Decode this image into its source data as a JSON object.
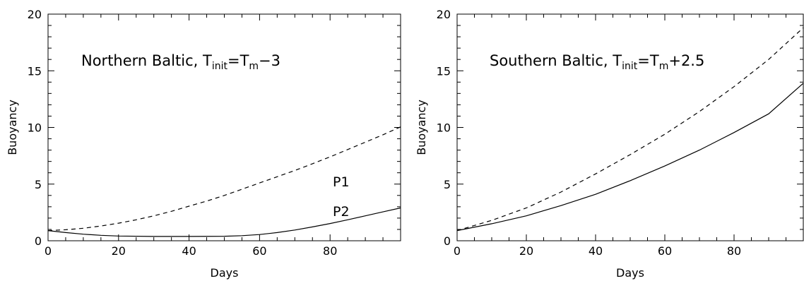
{
  "chart_data": [
    {
      "type": "line",
      "annotation": {
        "main": "Northern Baltic, T",
        "sub1": "init",
        "mid": "=T",
        "sub2": "m",
        "tail": "−3"
      },
      "xlabel": "Days",
      "ylabel": "Buoyancy",
      "xlim": [
        0,
        100
      ],
      "ylim": [
        0,
        20
      ],
      "xticks": [
        0,
        20,
        40,
        60,
        80
      ],
      "yticks": [
        0,
        5,
        10,
        15,
        20
      ],
      "grid": false,
      "series": [
        {
          "name": "P1",
          "style": "solid",
          "x": [
            0,
            5,
            10,
            15,
            20,
            30,
            40,
            50,
            55,
            60,
            65,
            70,
            75,
            80,
            85,
            90,
            95,
            100
          ],
          "y": [
            0.9,
            0.72,
            0.58,
            0.48,
            0.42,
            0.38,
            0.38,
            0.4,
            0.45,
            0.55,
            0.72,
            0.95,
            1.22,
            1.52,
            1.85,
            2.2,
            2.55,
            2.9
          ]
        },
        {
          "name": "P2",
          "style": "dashed",
          "x": [
            0,
            5,
            10,
            15,
            20,
            25,
            30,
            35,
            40,
            45,
            50,
            55,
            60,
            65,
            70,
            75,
            80,
            85,
            90,
            95,
            100
          ],
          "y": [
            0.9,
            0.97,
            1.1,
            1.3,
            1.55,
            1.85,
            2.2,
            2.6,
            3.05,
            3.5,
            4.0,
            4.55,
            5.1,
            5.65,
            6.2,
            6.8,
            7.4,
            8.05,
            8.7,
            9.35,
            10.05
          ]
        }
      ]
    },
    {
      "type": "line",
      "annotation": {
        "main": "Southern Baltic, T",
        "sub1": "init",
        "mid": "=T",
        "sub2": "m",
        "tail": "+2.5"
      },
      "xlabel": "Days",
      "ylabel": "Buoyancy",
      "xlim": [
        0,
        100
      ],
      "ylim": [
        0,
        20
      ],
      "xticks": [
        0,
        20,
        40,
        60,
        80
      ],
      "yticks": [
        0,
        5,
        10,
        15,
        20
      ],
      "grid": false,
      "series": [
        {
          "style": "solid",
          "x": [
            0,
            10,
            20,
            30,
            40,
            50,
            60,
            70,
            80,
            90,
            100
          ],
          "y": [
            0.9,
            1.5,
            2.2,
            3.1,
            4.1,
            5.3,
            6.6,
            8.0,
            9.55,
            11.2,
            13.9
          ]
        },
        {
          "style": "dashed",
          "x": [
            0,
            10,
            20,
            30,
            40,
            50,
            60,
            70,
            80,
            90,
            100
          ],
          "y": [
            0.9,
            1.8,
            2.9,
            4.3,
            5.9,
            7.6,
            9.4,
            11.4,
            13.6,
            16.0,
            18.8
          ]
        }
      ]
    }
  ]
}
